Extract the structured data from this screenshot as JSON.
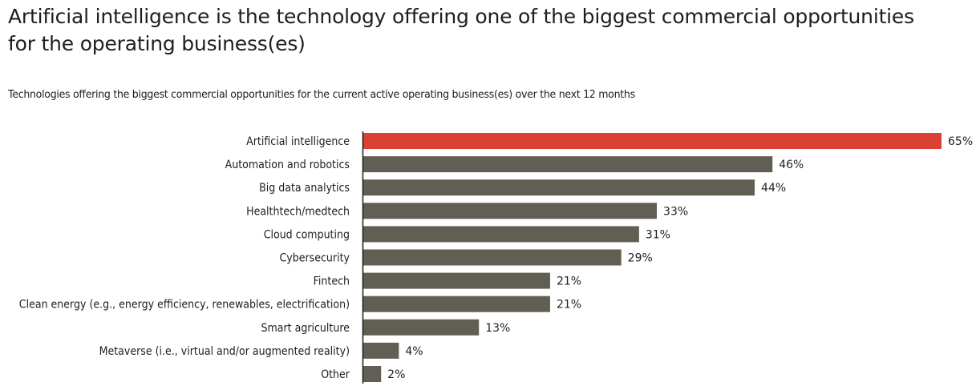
{
  "header": {
    "title": "Artificial intelligence is the technology offering one of the biggest commercial opportunities for the operating business(es)",
    "title_line1": "Artificial intelligence is the technology offering one of the biggest commercial opportunities",
    "title_line2": "for the operating business(es)",
    "subtitle": "Technologies offering the biggest commercial opportunities for the current active operating business(es) over the next 12 months"
  },
  "colors": {
    "highlight": "#db4035",
    "default_bar": "#615e53",
    "axis": "#1a1a1a",
    "text": "#1e1e1e"
  },
  "chart_data": {
    "type": "bar",
    "orientation": "horizontal",
    "title": "Artificial intelligence is the technology offering one of the biggest commercial opportunities for the operating business(es)",
    "subtitle": "Technologies offering the biggest commercial opportunities for the current active operating business(es) over the next 12 months",
    "xlabel": "",
    "ylabel": "",
    "unit": "%",
    "xlim": [
      0,
      65
    ],
    "grid": false,
    "legend": "none",
    "categories": [
      "Artificial intelligence",
      "Automation and robotics",
      "Big data analytics",
      "Healthtech/medtech",
      "Cloud computing",
      "Cybersecurity",
      "Fintech",
      "Clean energy (e.g., energy efficiency, renewables, electrification)",
      "Smart agriculture",
      "Metaverse (i.e., virtual and/or augmented reality)",
      "Other"
    ],
    "values": [
      65,
      46,
      44,
      33,
      31,
      29,
      21,
      21,
      13,
      4,
      2
    ],
    "value_labels": [
      "65%",
      "46%",
      "44%",
      "33%",
      "31%",
      "29%",
      "21%",
      "21%",
      "13%",
      "4%",
      "2%"
    ],
    "highlight_index": 0
  }
}
